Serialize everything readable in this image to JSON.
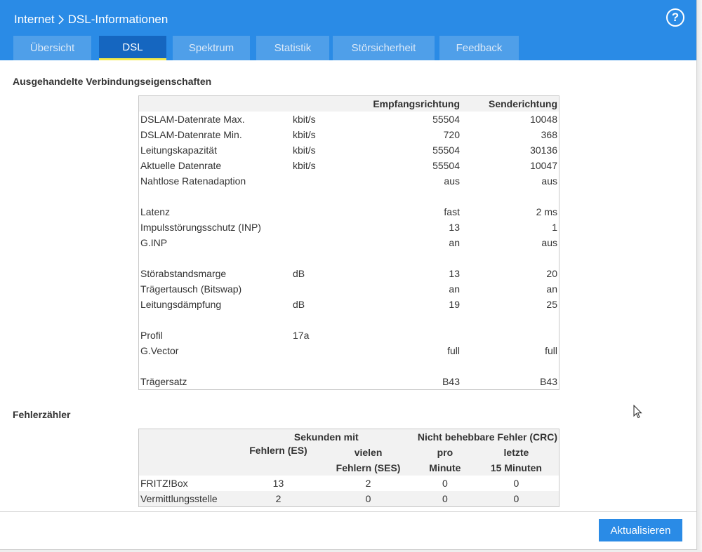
{
  "header": {
    "breadcrumb_parent": "Internet",
    "breadcrumb_current": "DSL-Informationen",
    "help_symbol": "?"
  },
  "tabs": [
    {
      "label": "Übersicht",
      "active": false
    },
    {
      "label": "DSL",
      "active": true
    },
    {
      "label": "Spektrum",
      "active": false
    },
    {
      "label": "Statistik",
      "active": false
    },
    {
      "label": "Störsicherheit",
      "active": false
    },
    {
      "label": "Feedback",
      "active": false
    }
  ],
  "connection": {
    "title": "Ausgehandelte Verbindungseigenschaften",
    "col_rx": "Empfangsrichtung",
    "col_tx": "Senderichtung",
    "rows": [
      {
        "name": "DSLAM-Datenrate Max.",
        "unit": "kbit/s",
        "rx": "55504",
        "tx": "10048"
      },
      {
        "name": "DSLAM-Datenrate Min.",
        "unit": "kbit/s",
        "rx": "720",
        "tx": "368"
      },
      {
        "name": "Leitungskapazität",
        "unit": "kbit/s",
        "rx": "55504",
        "tx": "30136"
      },
      {
        "name": "Aktuelle Datenrate",
        "unit": "kbit/s",
        "rx": "55504",
        "tx": "10047"
      },
      {
        "name": "Nahtlose Ratenadaption",
        "unit": "",
        "rx": "aus",
        "tx": "aus"
      },
      {
        "name": "",
        "unit": "",
        "rx": "",
        "tx": ""
      },
      {
        "name": "Latenz",
        "unit": "",
        "rx": "fast",
        "tx": "2 ms"
      },
      {
        "name": "Impulsstörungsschutz (INP)",
        "unit": "",
        "rx": "13",
        "tx": "1"
      },
      {
        "name": "G.INP",
        "unit": "",
        "rx": "an",
        "tx": "aus"
      },
      {
        "name": "",
        "unit": "",
        "rx": "",
        "tx": ""
      },
      {
        "name": "Störabstandsmarge",
        "unit": "dB",
        "rx": "13",
        "tx": "20"
      },
      {
        "name": "Trägertausch (Bitswap)",
        "unit": "",
        "rx": "an",
        "tx": "an"
      },
      {
        "name": "Leitungsdämpfung",
        "unit": "dB",
        "rx": "19",
        "tx": "25"
      },
      {
        "name": "",
        "unit": "",
        "rx": "",
        "tx": ""
      },
      {
        "name": "Profil",
        "unit": "17a",
        "rx": "",
        "tx": ""
      },
      {
        "name": "G.Vector",
        "unit": "",
        "rx": "full",
        "tx": "full"
      },
      {
        "name": "",
        "unit": "",
        "rx": "",
        "tx": ""
      },
      {
        "name": "Trägersatz",
        "unit": "",
        "rx": "B43",
        "tx": "B43"
      }
    ]
  },
  "errors": {
    "title": "Fehlerzähler",
    "group_seconds": "Sekunden mit",
    "group_crc": "Nicht behebbare Fehler (CRC)",
    "col_es": "Fehlern (ES)",
    "col_ses_1": "vielen",
    "col_ses_2": "Fehlern (SES)",
    "col_min_1": "pro",
    "col_min_2": "Minute",
    "col_15_1": "letzte",
    "col_15_2": "15 Minuten",
    "rows": [
      {
        "name": "FRITZ!Box",
        "es": "13",
        "ses": "2",
        "per_min": "0",
        "last15": "0"
      },
      {
        "name": "Vermittlungsstelle",
        "es": "2",
        "ses": "0",
        "per_min": "0",
        "last15": "0"
      }
    ]
  },
  "footer": {
    "refresh_label": "Aktualisieren"
  },
  "colors": {
    "header_blue": "#2a8be6",
    "tab_active": "#1566c0",
    "tab_underline": "#f3e94a",
    "button_blue": "#2a8be6"
  }
}
